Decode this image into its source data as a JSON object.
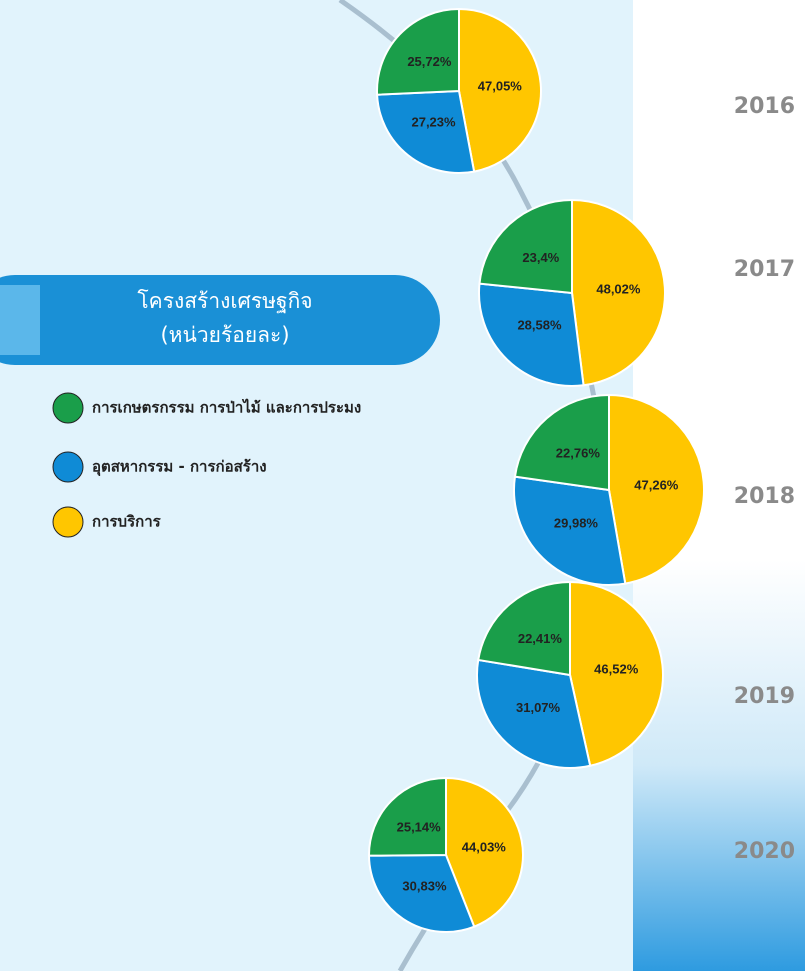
{
  "title": "โครงสร้างเศรษฐกิจ",
  "subtitle": "(หน่วยร้อยละ)",
  "legend": [
    {
      "name": "การเกษตรกรรม การป่าไม้ และการประมง",
      "color": "#1a9e4a"
    },
    {
      "name": "อุตสหากรรม  - การก่อสร้าง",
      "color": "#0f8bd6"
    },
    {
      "name": "การบริการ",
      "color": "#ffc600"
    }
  ],
  "chart_data": [
    {
      "type": "pie",
      "title": "2016",
      "values": [
        47.05,
        27.23,
        25.72
      ],
      "value_labels": [
        "47,05%",
        "27,23%",
        "25,72%"
      ],
      "colors": [
        "#ffc600",
        "#0f8bd6",
        "#1a9e4a"
      ]
    },
    {
      "type": "pie",
      "title": "2017",
      "values": [
        48.02,
        28.58,
        23.4
      ],
      "value_labels": [
        "48,02%",
        "28,58%",
        "23,4%"
      ],
      "colors": [
        "#ffc600",
        "#0f8bd6",
        "#1a9e4a"
      ]
    },
    {
      "type": "pie",
      "title": "2018",
      "values": [
        47.26,
        29.98,
        22.76
      ],
      "value_labels": [
        "47,26%",
        "29,98%",
        "22,76%"
      ],
      "colors": [
        "#ffc600",
        "#0f8bd6",
        "#1a9e4a"
      ]
    },
    {
      "type": "pie",
      "title": "2019",
      "values": [
        46.52,
        31.07,
        22.41
      ],
      "value_labels": [
        "46,52%",
        "31,07%",
        "22,41%"
      ],
      "colors": [
        "#ffc600",
        "#0f8bd6",
        "#1a9e4a"
      ]
    },
    {
      "type": "pie",
      "title": "2020",
      "values": [
        44.03,
        30.83,
        25.14
      ],
      "value_labels": [
        "44,03%",
        "30,83%",
        "25,14%"
      ],
      "colors": [
        "#ffc600",
        "#0f8bd6",
        "#1a9e4a"
      ]
    }
  ]
}
